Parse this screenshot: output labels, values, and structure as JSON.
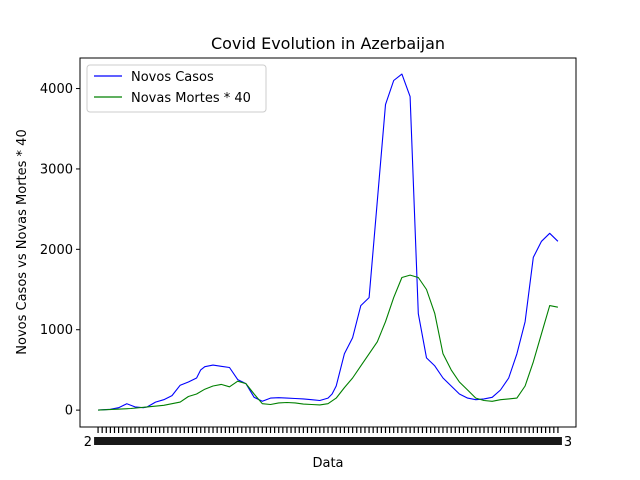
{
  "chart_data": {
    "type": "line",
    "title": "Covid Evolution in Azerbaijan",
    "xlabel": "Data",
    "ylabel": "Novos Casos vs Novas Mortes * 40",
    "xlim": [
      -22,
      582
    ],
    "ylim": [
      -210,
      4380
    ],
    "yticks": [
      0,
      1000,
      2000,
      3000,
      4000
    ],
    "x_tick_fragments": {
      "left": "2",
      "right": "3"
    },
    "grid": false,
    "legend_position": "top-left",
    "series": [
      {
        "name": "Novos Casos",
        "color": "#0000ff",
        "x": [
          0,
          15,
          25,
          35,
          45,
          55,
          60,
          70,
          80,
          90,
          100,
          110,
          120,
          125,
          130,
          140,
          150,
          160,
          170,
          180,
          190,
          200,
          210,
          220,
          230,
          240,
          250,
          260,
          270,
          280,
          285,
          290,
          295,
          300,
          310,
          320,
          330,
          340,
          350,
          360,
          370,
          380,
          390,
          400,
          410,
          420,
          430,
          440,
          450,
          460,
          470,
          480,
          490,
          500,
          510,
          520,
          530,
          540,
          550,
          560
        ],
        "values": [
          0,
          10,
          30,
          80,
          40,
          30,
          40,
          100,
          130,
          180,
          310,
          350,
          400,
          500,
          540,
          560,
          545,
          530,
          380,
          330,
          160,
          110,
          150,
          155,
          150,
          145,
          140,
          130,
          120,
          150,
          200,
          300,
          500,
          700,
          900,
          1300,
          1400,
          2600,
          3800,
          4100,
          4180,
          3900,
          1200,
          650,
          550,
          400,
          300,
          200,
          150,
          130,
          140,
          160,
          250,
          400,
          700,
          1100,
          1900,
          2100,
          2200,
          2100
        ]
      },
      {
        "name": "Novas Mortes * 40",
        "color": "#008000",
        "x": [
          0,
          20,
          40,
          60,
          80,
          100,
          110,
          120,
          130,
          140,
          150,
          160,
          170,
          180,
          190,
          200,
          210,
          220,
          230,
          240,
          250,
          260,
          270,
          280,
          290,
          300,
          310,
          320,
          330,
          340,
          350,
          360,
          370,
          380,
          390,
          400,
          410,
          420,
          430,
          440,
          450,
          460,
          470,
          480,
          490,
          500,
          510,
          520,
          530,
          540,
          550,
          560
        ],
        "values": [
          0,
          10,
          20,
          40,
          60,
          100,
          170,
          200,
          260,
          300,
          320,
          290,
          360,
          330,
          200,
          80,
          70,
          90,
          95,
          90,
          75,
          70,
          65,
          80,
          150,
          280,
          400,
          550,
          700,
          850,
          1100,
          1400,
          1650,
          1680,
          1650,
          1500,
          1200,
          700,
          500,
          350,
          250,
          150,
          120,
          110,
          130,
          140,
          150,
          300,
          600,
          950,
          1300,
          1280
        ]
      }
    ]
  }
}
